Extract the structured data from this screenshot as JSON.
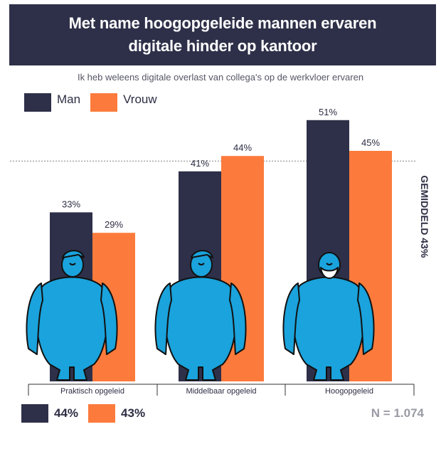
{
  "title": "Met name hoogopgeleide mannen ervaren\ndigitale hinder op kantoor",
  "subtitle": "Ik heb weleens digitale overlast van collega's op de werkvloer ervaren",
  "colors": {
    "man": "#2e3049",
    "vrouw": "#fc7b3c",
    "figure": "#1aa3dc",
    "outline": "#111111",
    "average": "#9a9a9a"
  },
  "legend": [
    {
      "label": "Man",
      "color": "#2e3049"
    },
    {
      "label": "Vrouw",
      "color": "#fc7b3c"
    }
  ],
  "footer": {
    "totals": [
      {
        "label": "44%",
        "color": "#2e3049"
      },
      {
        "label": "43%",
        "color": "#fc7b3c"
      }
    ],
    "n": "N = 1.074"
  },
  "chart_data": {
    "type": "bar",
    "title": "Met name hoogopgeleide mannen ervaren digitale hinder op kantoor",
    "subtitle": "Ik heb weleens digitale overlast van collega's op de werkvloer ervaren",
    "categories": [
      "Praktisch opgeleid",
      "Middelbaar opgeleid",
      "Hoogopgeleid"
    ],
    "series": [
      {
        "name": "Man",
        "values": [
          33,
          41,
          51
        ],
        "labels": [
          "33%",
          "41%",
          "51%"
        ]
      },
      {
        "name": "Vrouw",
        "values": [
          29,
          44,
          45
        ],
        "labels": [
          "29%",
          "44%",
          "45%"
        ]
      }
    ],
    "average": {
      "value": 43,
      "label": "GEMIDDELD 43%"
    },
    "ylim": [
      0,
      58
    ],
    "grid": false,
    "legend_position": "top-left"
  }
}
